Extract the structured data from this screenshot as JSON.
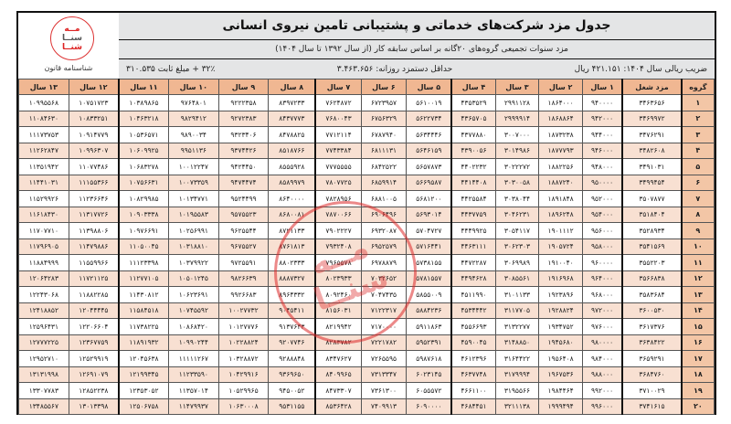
{
  "logo": {
    "text": "مه سنا شنا",
    "lines": [
      "مــه",
      "سنــا",
      "شنــا"
    ],
    "caption": "شناسنامه قانون"
  },
  "header": {
    "title": "جدول مزد شرکت‌های خدماتی و پشتیبانی تامین نیروی انسانی",
    "subtitle": "مزد سنوات تجمیعی گروه‌های ۲۰گانه بر اساس سابقه کار (از سال ۱۳۹۲ تا سال ۱۴۰۴)",
    "coefficient": "ضریب ریالی سال ۱۴۰۴: ۴۲۱.۱۵۱ ریال",
    "min_wage": "حداقل دستمزد روزانه: ۳.۴۶۳.۶۵۶",
    "formula": "۳۲٪ + مبلغ ثابت ۳۱۰.۵۳۵"
  },
  "stamp": {
    "text": "مه سنا شنا"
  },
  "colors": {
    "header": "#f0b792",
    "group": "#f3c6a6",
    "row_alt": "#f8e0d2",
    "stamp": "#dc2828"
  },
  "table": {
    "columns": [
      "گروه",
      "مزد شغل",
      "۱ سال",
      "۲ سال",
      "۳ سال",
      "۴ سال",
      "۵ سال",
      "۶ سال",
      "۷ سال",
      "۸ سال",
      "۹ سال",
      "۱۰ سال",
      "۱۱ سال",
      "۱۲ سال",
      "۱۳ سال"
    ],
    "rows": [
      [
        1,
        3463656,
        940000,
        1864000,
        2991128,
        4353529,
        5610019,
        6723957,
        7624872,
        8397233,
        9222358,
        9764801,
        10389865,
        10751723,
        10995568
      ],
      [
        2,
        3469972,
        942000,
        1868864,
        2999914,
        4365705,
        5622734,
        6756329,
        7680043,
        8437773,
        9272383,
        9829412,
        10463218,
        10833251,
        11084630
      ],
      [
        3,
        3476291,
        944000,
        1873238,
        3007000,
        4377880,
        5634446,
        6787940,
        7712114,
        8478825,
        9323406,
        9890034,
        10536571,
        10914779,
        11173753
      ],
      [
        4,
        3482608,
        946000,
        1877793,
        3014986,
        4390056,
        5646159,
        6811131,
        7743384,
        8518766,
        9374426,
        9951136,
        10609925,
        10996307,
        11262847
      ],
      [
        5,
        3491031,
        948000,
        1882256,
        3022272,
        4402232,
        5657873,
        6842522,
        7775555,
        8555928,
        9424450,
        10012247,
        10683278,
        11077486,
        11351942
      ],
      [
        6,
        3499454,
        950000,
        1887240,
        3030058,
        4414408,
        5669587,
        6859914,
        7807725,
        8589979,
        9474474,
        10073359,
        10756631,
        11155366,
        11441031
      ],
      [
        7,
        3507877,
        952000,
        1891848,
        3038044,
        4425584,
        5681200,
        6881005,
        7828956,
        8640000,
        9524499,
        10134771,
        10829985,
        11236646,
        11529926
      ],
      [
        8,
        3518404,
        954000,
        1896248,
        3046231,
        4437759,
        5693014,
        6906496,
        7870066,
        8680081,
        9575523,
        10195583,
        10903338,
        11317726,
        11618430
      ],
      [
        9,
        3528934,
        956000,
        1901112,
        3054117,
        4449925,
        5704727,
        6932087,
        7902227,
        8721133,
        9625544,
        10256991,
        10976691,
        11398806,
        11707710
      ],
      [
        10,
        3541569,
        958000,
        1905724,
        3062303,
        4463111,
        5716441,
        6952579,
        7932408,
        8761813,
        9675527,
        10318810,
        11050045,
        11479886,
        11796905
      ],
      [
        11,
        3552203,
        960000,
        1910040,
        3069989,
        4472287,
        5738155,
        6978879,
        7965578,
        8802333,
        9725591,
        10379922,
        11123398,
        11559966,
        11884999
      ],
      [
        12,
        3566838,
        964000,
        1916968,
        3085561,
        4494628,
        5781557,
        7032652,
        8023933,
        8887327,
        9826639,
        10501245,
        11277105,
        11721125,
        12064283
      ],
      [
        13,
        3583684,
        968000,
        1923896,
        3101133,
        4511990,
        5855009,
        7047435,
        8092460,
        8964332,
        9926683,
        10623691,
        11430812,
        11882285,
        12243068
      ],
      [
        14,
        3600530,
        972000,
        1928824,
        3117705,
        4534442,
        5884236,
        7122317,
        8156031,
        9045411,
        10027732,
        10745592,
        11584518,
        12044445,
        12418852
      ],
      [
        15,
        3617376,
        976000,
        1934752,
        3132277,
        4556693,
        5911863,
        7170000,
        8219942,
        9137643,
        10127776,
        10868420,
        11738225,
        12206604,
        12596431
      ],
      [
        16,
        3638422,
        980000,
        1945680,
        3148850,
        4590045,
        5952391,
        7221782,
        8283782,
        9207746,
        10228824,
        10990244,
        11891932,
        12367759,
        12777225
      ],
      [
        17,
        3659291,
        984000,
        1956408,
        3164422,
        4612396,
        5987618,
        7265595,
        8347627,
        9288848,
        10328872,
        11111267,
        12045638,
        12529919,
        12952710
      ],
      [
        18,
        3684760,
        988000,
        1967536,
        3179994,
        4637748,
        6023145,
        7313347,
        8409965,
        9369650,
        10429916,
        11233590,
        12199345,
        12691079,
        13131998
      ],
      [
        19,
        3710029,
        992000,
        1984464,
        3195566,
        4661100,
        6055572,
        7361300,
        8473307,
        9450052,
        10529965,
        11357014,
        12353052,
        12852238,
        13307783
      ],
      [
        20,
        3741615,
        996000,
        1999494,
        3211138,
        4684451,
        6090000,
        7409913,
        8536428,
        9531155,
        10630008,
        11479937,
        12506758,
        13013398,
        13485567
      ]
    ]
  }
}
